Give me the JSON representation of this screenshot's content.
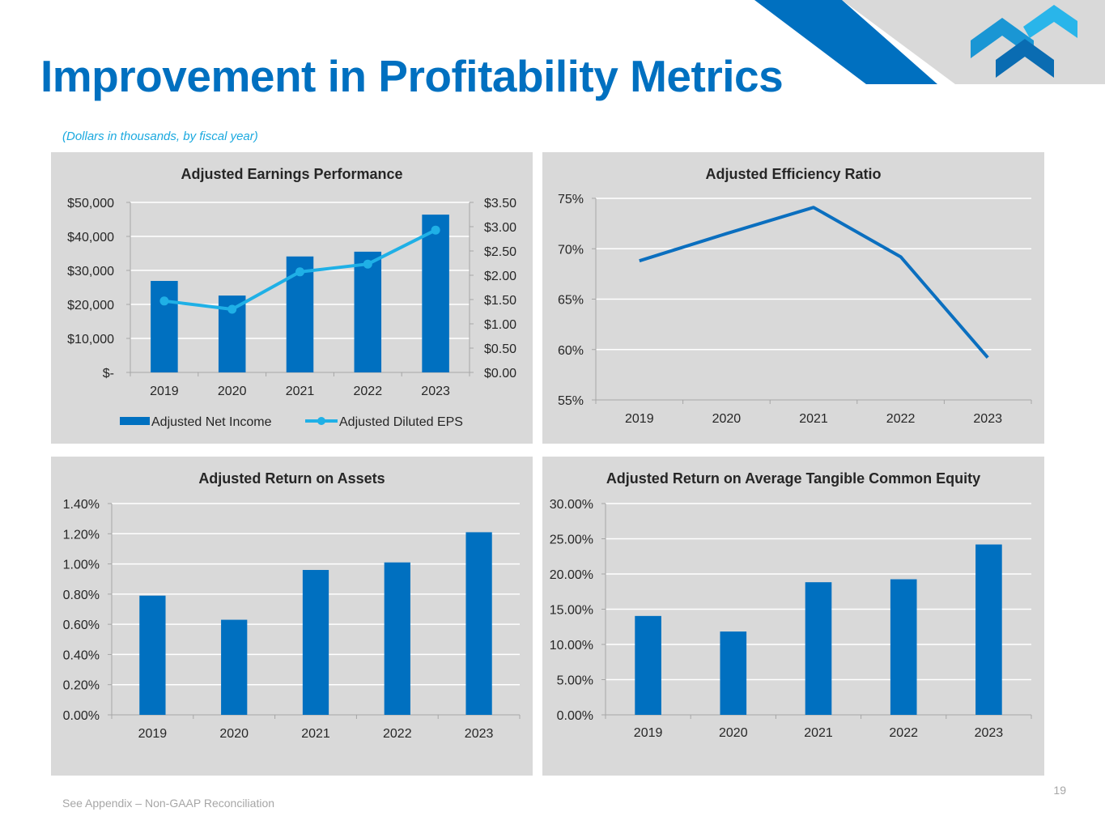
{
  "slide": {
    "title": "Improvement in Profitability Metrics",
    "subtitle": "(Dollars in thousands, by fiscal year)",
    "footer_note": "See Appendix – Non-GAAP Reconciliation",
    "page_number": "19"
  },
  "colors": {
    "brand_blue": "#0070c0",
    "accent_light_blue": "#1ba9df",
    "panel_bg": "#d9d9d9",
    "bar": "#0070c0",
    "eps_line": "#1fb0e6",
    "gridline": "#ffffff",
    "text": "#262626",
    "footer_text": "#a6a6a6"
  },
  "logo": {
    "icon": "stacked-chevrons-logo"
  },
  "chart_data": [
    {
      "id": "earnings",
      "type": "bar",
      "title": "Adjusted Earnings Performance",
      "categories": [
        "2019",
        "2020",
        "2021",
        "2022",
        "2023"
      ],
      "series": [
        {
          "name": "Adjusted Net Income",
          "type": "bar",
          "axis": "left",
          "values": [
            26900,
            22600,
            34100,
            35500,
            46400
          ]
        },
        {
          "name": "Adjusted Diluted EPS",
          "type": "line",
          "axis": "right",
          "markers": true,
          "values": [
            1.47,
            1.3,
            2.07,
            2.23,
            2.93
          ]
        }
      ],
      "y_left": {
        "min": 0,
        "max": 50000,
        "step": 10000,
        "tick_labels": [
          "$-",
          "$10,000",
          "$20,000",
          "$30,000",
          "$40,000",
          "$50,000"
        ]
      },
      "y_right": {
        "min": 0,
        "max": 3.5,
        "step": 0.5,
        "tick_labels": [
          "$0.00",
          "$0.50",
          "$1.00",
          "$1.50",
          "$2.00",
          "$2.50",
          "$3.00",
          "$3.50"
        ]
      },
      "xlabel": "",
      "ylabel": "",
      "grid": true,
      "legend": {
        "position": "bottom",
        "entries": [
          "Adjusted Net Income",
          "Adjusted Diluted EPS"
        ]
      }
    },
    {
      "id": "efficiency",
      "type": "line",
      "title": "Adjusted Efficiency Ratio",
      "categories": [
        "2019",
        "2020",
        "2021",
        "2022",
        "2023"
      ],
      "series": [
        {
          "name": "Adjusted Efficiency Ratio",
          "values": [
            68.8,
            71.5,
            74.1,
            69.2,
            59.2
          ]
        }
      ],
      "y": {
        "min": 55,
        "max": 75,
        "step": 5,
        "tick_labels": [
          "55%",
          "60%",
          "65%",
          "70%",
          "75%"
        ]
      },
      "xlabel": "",
      "ylabel": "",
      "grid": true,
      "legend": null
    },
    {
      "id": "roa",
      "type": "bar",
      "title": "Adjusted Return on Assets",
      "categories": [
        "2019",
        "2020",
        "2021",
        "2022",
        "2023"
      ],
      "series": [
        {
          "name": "Adjusted Return on Assets",
          "values": [
            0.79,
            0.63,
            0.96,
            1.01,
            1.21
          ]
        }
      ],
      "y": {
        "min": 0,
        "max": 1.4,
        "step": 0.2,
        "tick_labels": [
          "0.00%",
          "0.20%",
          "0.40%",
          "0.60%",
          "0.80%",
          "1.00%",
          "1.20%",
          "1.40%"
        ]
      },
      "xlabel": "",
      "ylabel": "",
      "grid": true,
      "legend": null
    },
    {
      "id": "roatce",
      "type": "bar",
      "title": "Adjusted Return on Average Tangible Common Equity",
      "categories": [
        "2019",
        "2020",
        "2021",
        "2022",
        "2023"
      ],
      "series": [
        {
          "name": "Adjusted ROATCE",
          "values": [
            14.04,
            11.83,
            18.83,
            19.25,
            24.19
          ]
        }
      ],
      "y": {
        "min": 0,
        "max": 30,
        "step": 5,
        "tick_labels": [
          "0.00%",
          "5.00%",
          "10.00%",
          "15.00%",
          "20.00%",
          "25.00%",
          "30.00%"
        ]
      },
      "xlabel": "",
      "ylabel": "",
      "grid": true,
      "legend": null
    }
  ]
}
